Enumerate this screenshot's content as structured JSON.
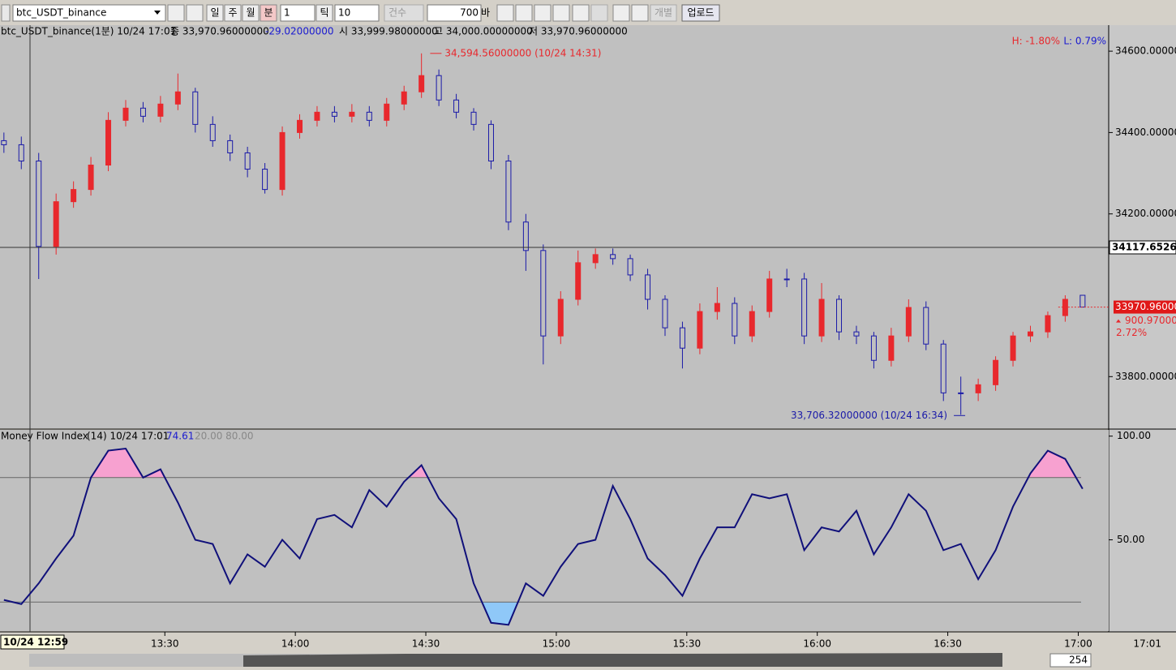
{
  "toolbar": {
    "symbol": "btc_USDT_binance",
    "period_buttons": [
      "일",
      "주",
      "월",
      "분"
    ],
    "minute_value": "1",
    "tick_label": "틱",
    "tick_value": "10",
    "count_label": "건수",
    "bar_count": "700",
    "bar_unit": "바",
    "individual": "개별",
    "upload": "업로드"
  },
  "header": {
    "symbol_period": "btc_USDT_binance(1분) 10/24 17:01",
    "close": "종 33,970.96000000",
    "change": "-29.02000000",
    "open": "시 33,999.98000000",
    "high": "고 34,000.00000000",
    "low": "저 33,970.96000000",
    "range_high": "H: -1.80%",
    "range_low": "L: 0.79%"
  },
  "chart_data": [
    {
      "type": "candlestick",
      "x": [
        "12:53",
        "12:57",
        "13:01",
        "13:05",
        "13:09",
        "13:13",
        "13:17",
        "13:21",
        "13:25",
        "13:29",
        "13:33",
        "13:37",
        "13:41",
        "13:45",
        "13:49",
        "13:53",
        "13:57",
        "14:01",
        "14:05",
        "14:09",
        "14:13",
        "14:17",
        "14:21",
        "14:25",
        "14:29",
        "14:33",
        "14:37",
        "14:41",
        "14:45",
        "14:49",
        "14:53",
        "14:57",
        "15:01",
        "15:05",
        "15:09",
        "15:13",
        "15:17",
        "15:21",
        "15:25",
        "15:29",
        "15:33",
        "15:37",
        "15:41",
        "15:45",
        "15:49",
        "15:53",
        "15:57",
        "16:01",
        "16:05",
        "16:09",
        "16:13",
        "16:17",
        "16:21",
        "16:25",
        "16:29",
        "16:33",
        "16:37",
        "16:41",
        "16:45",
        "16:49",
        "16:53",
        "16:57",
        "17:01"
      ],
      "open": [
        34380,
        34370,
        34330,
        34120,
        34230,
        34260,
        34320,
        34430,
        34460,
        34440,
        34470,
        34500,
        34420,
        34380,
        34350,
        34310,
        34260,
        34400,
        34430,
        34450,
        34440,
        34450,
        34430,
        34470,
        34500,
        34540,
        34480,
        34450,
        34420,
        34330,
        34180,
        34110,
        33900,
        33990,
        34080,
        34100,
        34090,
        34050,
        33990,
        33920,
        33870,
        33960,
        33980,
        33900,
        33960,
        34040,
        34040,
        33900,
        33990,
        33910,
        33900,
        33840,
        33900,
        33970,
        33880,
        33760,
        33760,
        33780,
        33840,
        33900,
        33910,
        33950,
        33999.98
      ],
      "high": [
        34400,
        34390,
        34350,
        34250,
        34280,
        34340,
        34450,
        34480,
        34475,
        34490,
        34545,
        34510,
        34440,
        34395,
        34365,
        34325,
        34415,
        34445,
        34465,
        34465,
        34470,
        34465,
        34485,
        34515,
        34594.56,
        34555,
        34495,
        34460,
        34430,
        34345,
        34200,
        34125,
        34010,
        34110,
        34115,
        34115,
        34100,
        34065,
        34000,
        33935,
        33980,
        34020,
        33995,
        33975,
        34060,
        34065,
        34055,
        34030,
        34000,
        33925,
        33910,
        33920,
        33990,
        33985,
        33890,
        33800,
        33795,
        33850,
        33910,
        33925,
        33960,
        34000,
        34000
      ],
      "low": [
        34350,
        34310,
        34040,
        34100,
        34215,
        34245,
        34305,
        34415,
        34425,
        34425,
        34455,
        34400,
        34365,
        34330,
        34290,
        34250,
        34245,
        34385,
        34415,
        34425,
        34425,
        34415,
        34415,
        34455,
        34485,
        34465,
        34435,
        34405,
        34310,
        34160,
        34060,
        33830,
        33880,
        33975,
        34065,
        34075,
        34035,
        33965,
        33900,
        33820,
        33855,
        33940,
        33880,
        33885,
        33945,
        34020,
        33880,
        33885,
        33890,
        33880,
        33820,
        33825,
        33885,
        33865,
        33740,
        33706.32,
        33740,
        33765,
        33825,
        33885,
        33895,
        33935,
        33970.96
      ],
      "close": [
        34370,
        34330,
        34120,
        34230,
        34260,
        34320,
        34430,
        34460,
        34440,
        34470,
        34500,
        34420,
        34380,
        34350,
        34310,
        34260,
        34400,
        34430,
        34450,
        34440,
        34450,
        34430,
        34470,
        34500,
        34540,
        34480,
        34450,
        34420,
        34330,
        34180,
        34110,
        33900,
        33990,
        34080,
        34100,
        34090,
        34050,
        33990,
        33920,
        33870,
        33960,
        33980,
        33900,
        33960,
        34040,
        34040,
        33900,
        33990,
        33910,
        33900,
        33840,
        33900,
        33970,
        33880,
        33760,
        33760,
        33780,
        33840,
        33900,
        33910,
        33950,
        33990,
        33970.96
      ],
      "up_color": "#e8282d",
      "down_color": "#1a1aa8",
      "ylim": [
        33673,
        34664
      ],
      "yticks": [
        {
          "value": 34600,
          "label": "34600.00000"
        },
        {
          "value": 34400,
          "label": "34400.00000"
        },
        {
          "value": 34200,
          "label": "34200.00000"
        },
        {
          "value": 33800,
          "label": "33800.00000"
        }
      ],
      "annotations": [
        {
          "text": "34,594.56000000 (10/24 14:31)",
          "value": 34594.56,
          "color": "#e8282d"
        },
        {
          "text": "33,706.32000000 (10/24 16:34)",
          "value": 33706.32,
          "color": "#1a1aa8"
        }
      ],
      "crosshair": {
        "value": 34117.65261,
        "label": "34117.65261",
        "time_label": "10/24 12:59"
      },
      "last_price": {
        "value": 33970.96,
        "label": "33970.96000",
        "change_label": "900.970000",
        "percent_label": "2.72%"
      }
    },
    {
      "type": "line",
      "title": "Money Flow Index",
      "params": "(14) 10/24 17:01",
      "last_label": "74.61",
      "levels_label": "20.00 80.00",
      "x": [
        "12:53",
        "12:57",
        "13:01",
        "13:05",
        "13:09",
        "13:13",
        "13:17",
        "13:21",
        "13:25",
        "13:29",
        "13:33",
        "13:37",
        "13:41",
        "13:45",
        "13:49",
        "13:53",
        "13:57",
        "14:01",
        "14:05",
        "14:09",
        "14:13",
        "14:17",
        "14:21",
        "14:25",
        "14:29",
        "14:33",
        "14:37",
        "14:41",
        "14:45",
        "14:49",
        "14:53",
        "14:57",
        "15:01",
        "15:05",
        "15:09",
        "15:13",
        "15:17",
        "15:21",
        "15:25",
        "15:29",
        "15:33",
        "15:37",
        "15:41",
        "15:45",
        "15:49",
        "15:53",
        "15:57",
        "16:01",
        "16:05",
        "16:09",
        "16:13",
        "16:17",
        "16:21",
        "16:25",
        "16:29",
        "16:33",
        "16:37",
        "16:41",
        "16:45",
        "16:49",
        "16:53",
        "16:57",
        "17:01"
      ],
      "values": [
        21,
        19,
        29,
        41,
        52,
        80,
        93,
        94,
        80,
        84,
        68,
        50,
        48,
        29,
        43,
        37,
        50,
        41,
        60,
        62,
        56,
        74,
        66,
        78,
        86,
        70,
        60,
        29,
        10,
        9,
        29,
        23,
        37,
        48,
        50,
        76,
        60,
        41,
        33,
        23,
        41,
        56,
        56,
        72,
        70,
        72,
        45,
        56,
        54,
        64,
        43,
        56,
        72,
        64,
        45,
        48,
        31,
        45,
        66,
        82,
        93,
        89,
        74.61
      ],
      "color": "#10107a",
      "levels": [
        20,
        80
      ],
      "over_color": "#f7a1d0",
      "under_color": "#8fc8f8",
      "ylim": [
        6,
        103
      ],
      "yticks": [
        {
          "value": 100,
          "label": "100.00"
        },
        {
          "value": 50,
          "label": "50.00"
        }
      ],
      "xticks": [
        "13:30",
        "14:00",
        "14:30",
        "15:00",
        "15:30",
        "16:00",
        "16:30",
        "17:00"
      ],
      "last_time": "17:01"
    }
  ],
  "scroll": {
    "bar_count": "254"
  }
}
